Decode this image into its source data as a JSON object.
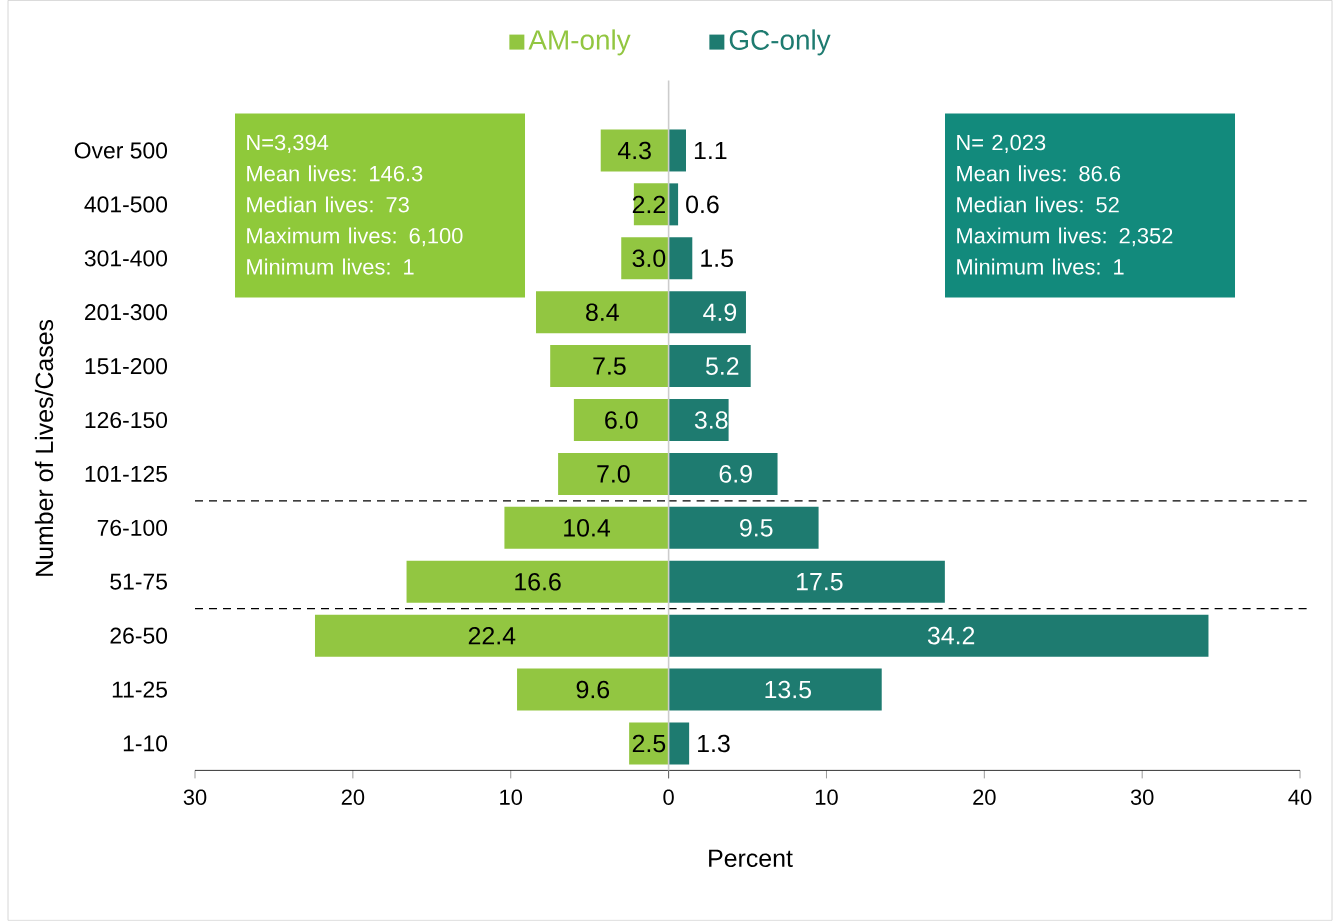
{
  "chart_data": [
    {
      "type": "bar",
      "orientation": "horizontal",
      "ylabel": "Number of Lives/Cases",
      "categories": [
        "Over 500",
        "401-500",
        "301-400",
        "201-300",
        "151-200",
        "126-150",
        "101-125",
        "76-100",
        "51-75",
        "26-50",
        "11-25",
        "1-10"
      ],
      "series": [
        {
          "name": "AM-only",
          "color": "#92c641",
          "values": [
            4.3,
            2.2,
            3.0,
            8.4,
            7.5,
            6.0,
            7.0,
            10.4,
            16.6,
            22.4,
            9.6,
            2.5
          ],
          "value_labels": [
            "4.3",
            "2.2",
            "3.0",
            "8.4",
            "7.5",
            "6.0",
            "7.0",
            "10.4",
            "16.6",
            "22.4",
            "9.6",
            "2.5"
          ]
        }
      ],
      "xlim": [
        30,
        0
      ],
      "xticks": [
        30,
        20,
        10,
        0
      ],
      "annotations": [
        "N=3,394",
        "Mean lives: 146.3",
        "Median lives: 73",
        "Maximum lives: 6,100",
        "Minimum lives: 1"
      ],
      "legend": "top"
    },
    {
      "type": "bar",
      "orientation": "horizontal",
      "xlabel": "Percent",
      "categories": [
        null,
        null,
        null,
        null,
        null,
        null,
        null,
        null,
        null,
        null,
        null,
        null
      ],
      "series": [
        {
          "name": "GC-only",
          "color": "#1e7b70",
          "values": [
            1.1,
            0.6,
            1.5,
            4.9,
            5.2,
            3.8,
            6.9,
            9.5,
            17.5,
            34.2,
            13.5,
            1.3
          ],
          "value_labels": [
            "1.1",
            "0.6",
            "1.5",
            "4.9",
            "5.2",
            "3.8",
            "6.9",
            "9.5",
            "17.5",
            "34.2",
            "13.5",
            "1.3"
          ]
        }
      ],
      "xlim": [
        0,
        40
      ],
      "xticks": [
        {
          "value": 0,
          "label": null
        },
        10,
        20,
        30,
        40
      ],
      "tick_labels": "x",
      "annotations": [
        "N= 2,023",
        "Mean lives: 86.6",
        "Median lives: 52",
        "Maximum lives: 2,352",
        "Minimum lives: 1"
      ],
      "legend": "top"
    }
  ]
}
